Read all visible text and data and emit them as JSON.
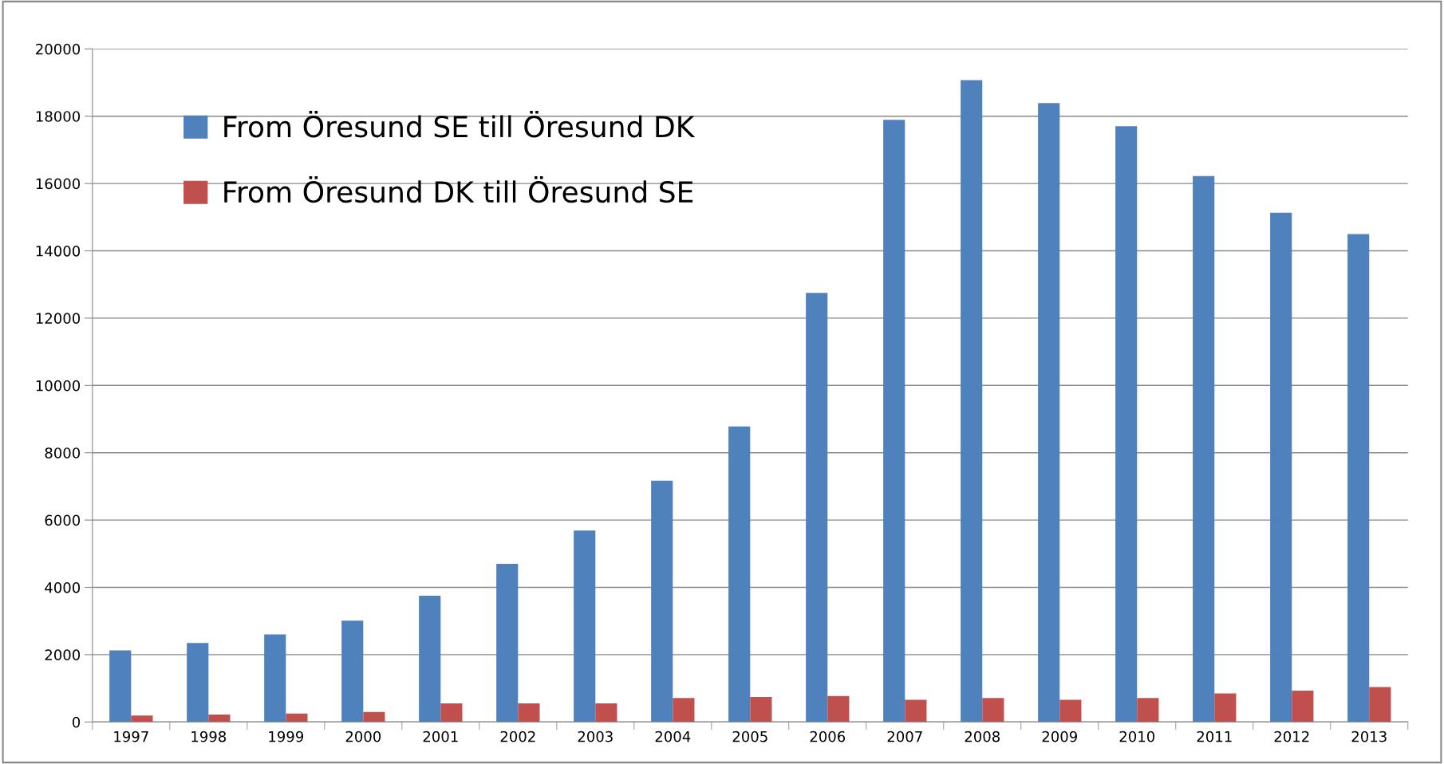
{
  "chart_data": {
    "type": "bar",
    "categories": [
      "1997",
      "1998",
      "1999",
      "2000",
      "2001",
      "2002",
      "2003",
      "2004",
      "2005",
      "2006",
      "2007",
      "2008",
      "2009",
      "2010",
      "2011",
      "2012",
      "2013"
    ],
    "series": [
      {
        "name": "From Öresund SE till Öresund DK",
        "color": "#4f81bd",
        "values": [
          2130,
          2350,
          2600,
          3010,
          3750,
          4700,
          5690,
          7170,
          8780,
          12750,
          17890,
          19070,
          18390,
          17700,
          16220,
          15130,
          14500
        ]
      },
      {
        "name": "From Öresund DK till Öresund SE",
        "color": "#c0504d",
        "values": [
          190,
          220,
          250,
          300,
          550,
          550,
          550,
          710,
          740,
          770,
          660,
          710,
          660,
          710,
          850,
          930,
          1040
        ]
      }
    ],
    "ylim": [
      0,
      20000
    ],
    "yticks": [
      0,
      2000,
      4000,
      6000,
      8000,
      10000,
      12000,
      14000,
      16000,
      18000,
      20000
    ],
    "grid": "y",
    "legend": "top left"
  }
}
